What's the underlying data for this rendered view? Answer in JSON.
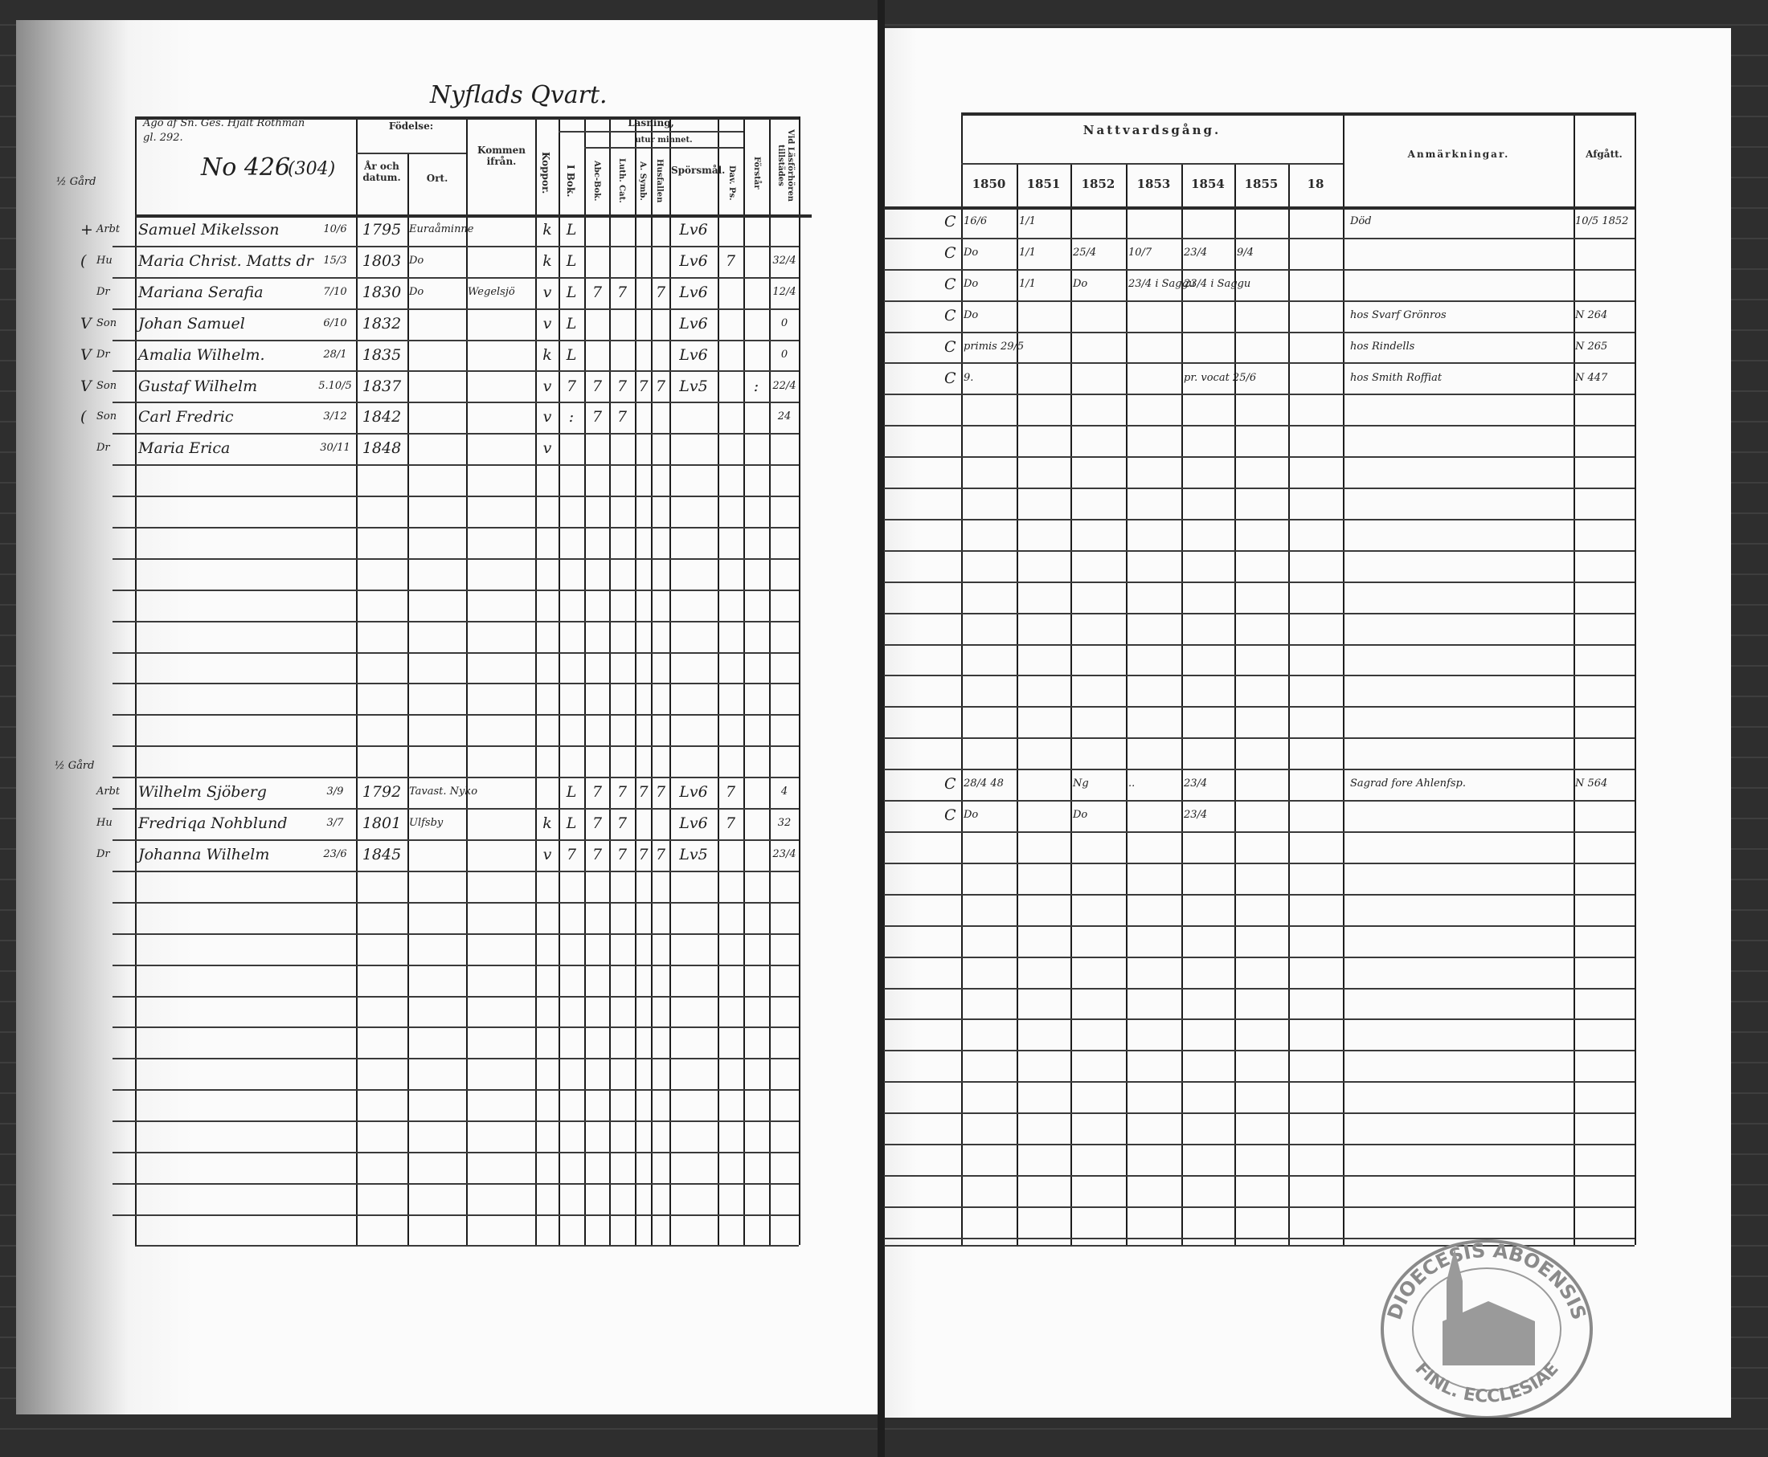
{
  "left_page": {
    "title": "Nyflads Qvart.",
    "owner_note": "Ägo af Sn. Ges. Hjalt Rothman",
    "owner_note2": "gl. 292.",
    "number": "No 426",
    "number_old": "(304)",
    "margin_farm_1": "½ Gård",
    "margin_farm_2": "½ Gård",
    "headers": {
      "fodelse": "Födelse:",
      "ar_och_datum": "År och datum.",
      "ort": "Ort.",
      "kommen_ifran": "Kommen ifrån.",
      "koppor": "Koppor.",
      "lasning": "Läsning,",
      "utur_minnet": "utur minnet.",
      "i_bok": "I Bok.",
      "abc_bok": "Abc-Bok.",
      "luth_cat": "Luth. Cat.",
      "a_symb": "A. Symb.",
      "husfallen": "Husfallen",
      "sporsmal": "Spörsmål.",
      "dav_ps": "Dav. Ps.",
      "forstar": "Förstår",
      "vid_lasforhoren": "Vid Läsförhören tillstädes"
    },
    "rows": [
      {
        "row": 0,
        "mark": "+",
        "relation": "Arbt",
        "name": "Samuel Mikelsson",
        "day": "10/6",
        "year": "1795",
        "place": "Euraåminne",
        "from": "",
        "koppor": "k",
        "i_bok": "L",
        "abc": "",
        "luth": "",
        "symb": "",
        "hus": "",
        "spors": "Lv6",
        "dav": "",
        "forst": "",
        "vid": ""
      },
      {
        "row": 1,
        "mark": "(",
        "relation": "Hu",
        "name": "Maria Christ. Matts dr",
        "day": "15/3",
        "year": "1803",
        "place": "Do",
        "from": "",
        "koppor": "k",
        "i_bok": "L",
        "abc": "",
        "luth": "",
        "symb": "",
        "hus": "",
        "spors": "Lv6",
        "dav": "7",
        "forst": "",
        "vid": "32/4"
      },
      {
        "row": 2,
        "mark": "",
        "relation": "Dr",
        "name": "Mariana Serafia",
        "day": "7/10",
        "year": "1830",
        "place": "Do",
        "from": "Wegelsjö",
        "koppor": "v",
        "i_bok": "L",
        "abc": "7",
        "luth": "7",
        "symb": "",
        "hus": "7",
        "spors": "Lv6",
        "dav": "",
        "forst": "",
        "vid": "12/4"
      },
      {
        "row": 3,
        "mark": "V",
        "relation": "Son",
        "name": "Johan Samuel",
        "day": "6/10",
        "year": "1832",
        "place": "",
        "from": "",
        "koppor": "v",
        "i_bok": "L",
        "abc": "",
        "luth": "",
        "symb": "",
        "hus": "",
        "spors": "Lv6",
        "dav": "",
        "forst": "",
        "vid": "0"
      },
      {
        "row": 4,
        "mark": "V",
        "relation": "Dr",
        "name": "Amalia Wilhelm.",
        "day": "28/1",
        "year": "1835",
        "place": "",
        "from": "",
        "koppor": "k",
        "i_bok": "L",
        "abc": "",
        "luth": "",
        "symb": "",
        "hus": "",
        "spors": "Lv6",
        "dav": "",
        "forst": "",
        "vid": "0"
      },
      {
        "row": 5,
        "mark": "V",
        "relation": "Son",
        "name": "Gustaf Wilhelm",
        "day": "5.10/5",
        "year": "1837",
        "place": "",
        "from": "",
        "koppor": "v",
        "i_bok": "7",
        "abc": "7",
        "luth": "7",
        "symb": "7",
        "hus": "7",
        "spors": "Lv5",
        "dav": "",
        "forst": ":",
        "vid": "22/4"
      },
      {
        "row": 6,
        "mark": "(",
        "relation": "Son",
        "name": "Carl Fredric",
        "day": "3/12",
        "year": "1842",
        "place": "",
        "from": "",
        "koppor": "v",
        "i_bok": ":",
        "abc": "7",
        "luth": "7",
        "symb": "",
        "hus": "",
        "spors": "",
        "dav": "",
        "forst": "",
        "vid": "24"
      },
      {
        "row": 7,
        "mark": "",
        "relation": "Dr",
        "name": "Maria Erica",
        "day": "30/11",
        "year": "1848",
        "place": "",
        "from": "",
        "koppor": "v",
        "i_bok": "",
        "abc": "",
        "luth": "",
        "symb": "",
        "hus": "",
        "spors": "",
        "dav": "",
        "forst": "",
        "vid": ""
      },
      {
        "row": 18,
        "mark": "",
        "relation": "Arbt",
        "name": "Wilhelm Sjöberg",
        "day": "3/9",
        "year": "1792",
        "place": "Tavast. Nyko",
        "from": "",
        "koppor": "",
        "i_bok": "L",
        "abc": "7",
        "luth": "7",
        "symb": "7",
        "hus": "7",
        "spors": "Lv6",
        "dav": "7",
        "forst": "",
        "vid": "4"
      },
      {
        "row": 19,
        "mark": "",
        "relation": "Hu",
        "name": "Fredriqa Nohblund",
        "day": "3/7",
        "year": "1801",
        "place": "Ulfsby",
        "from": "",
        "koppor": "k",
        "i_bok": "L",
        "abc": "7",
        "luth": "7",
        "symb": "",
        "hus": "",
        "spors": "Lv6",
        "dav": "7",
        "forst": "",
        "vid": "32"
      },
      {
        "row": 20,
        "mark": "",
        "relation": "Dr",
        "name": "Johanna Wilhelm",
        "day": "23/6",
        "year": "1845",
        "place": "",
        "from": "",
        "koppor": "v",
        "i_bok": "7",
        "abc": "7",
        "luth": "7",
        "symb": "7",
        "hus": "7",
        "spors": "Lv5",
        "dav": "",
        "forst": "",
        "vid": "23/4"
      }
    ]
  },
  "right_page": {
    "headers": {
      "nattvardsgang": "Nattvardsgång.",
      "years": [
        "1850",
        "1851",
        "1852",
        "1853",
        "1854",
        "1855",
        "18"
      ],
      "anmarkningar": "Anmärkningar.",
      "afgatt": "Afgått."
    },
    "rows": [
      {
        "row": 0,
        "mark": "C",
        "cells": [
          "16/6",
          "1/1",
          "",
          "",
          "",
          "",
          ""
        ],
        "note": "Död",
        "afgatt": "10/5 1852"
      },
      {
        "row": 1,
        "mark": "C",
        "cells": [
          "Do",
          "1/1",
          "25/4",
          "10/7",
          "23/4",
          "9/4",
          ""
        ],
        "note": "",
        "afgatt": ""
      },
      {
        "row": 2,
        "mark": "C",
        "cells": [
          "Do",
          "1/1",
          "Do",
          "23/4 i Saggu",
          "23/4 i Saggu",
          "",
          ""
        ],
        "note": "",
        "afgatt": ""
      },
      {
        "row": 3,
        "mark": "C",
        "cells": [
          "Do",
          "",
          "",
          "",
          "",
          "",
          ""
        ],
        "note": "hos Svarf Grönros",
        "afgatt": "N 264"
      },
      {
        "row": 4,
        "mark": "C",
        "cells": [
          "primis 29/5",
          "",
          "",
          "",
          "",
          "",
          ""
        ],
        "note": "hos Rindells",
        "afgatt": "N 265"
      },
      {
        "row": 5,
        "mark": "C",
        "cells": [
          "9.",
          "",
          "",
          "",
          "pr. vocat 25/6",
          "",
          ""
        ],
        "note": "hos Smith Roffiat",
        "afgatt": "N 447"
      },
      {
        "row": 18,
        "mark": "C",
        "cells": [
          "28/4 48",
          "",
          "Ng",
          "..",
          "23/4",
          "",
          ""
        ],
        "note": "Sagrad fore Ahlenfsp.",
        "afgatt": "N 564"
      },
      {
        "row": 19,
        "mark": "C",
        "cells": [
          "Do",
          "",
          "Do",
          "",
          "23/4",
          "",
          ""
        ],
        "note": "",
        "afgatt": ""
      }
    ]
  },
  "stamp": {
    "text": "DIOECESIS ABOENSIS",
    "text_bottom": "FINL. ECCLESIAE"
  }
}
